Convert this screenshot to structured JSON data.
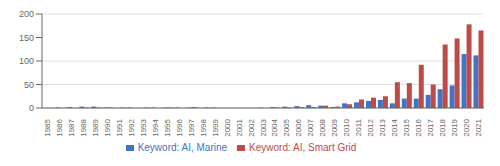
{
  "chart_data": {
    "type": "bar",
    "categories": [
      "1985",
      "1986",
      "1987",
      "1988",
      "1989",
      "1990",
      "1991",
      "1992",
      "1993",
      "1994",
      "1995",
      "1996",
      "1997",
      "1998",
      "1999",
      "2000",
      "2001",
      "2002",
      "2003",
      "2004",
      "2005",
      "2006",
      "2007",
      "2008",
      "2009",
      "2010",
      "2011",
      "2012",
      "2013",
      "2014",
      "2015",
      "2016",
      "2017",
      "2018",
      "2019",
      "2020",
      "2021"
    ],
    "series": [
      {
        "name": "Keyword: AI, Marine",
        "color": "#4472C4",
        "values": [
          0,
          1,
          2,
          3,
          3,
          1,
          0,
          1,
          0,
          1,
          1,
          1,
          1,
          0,
          1,
          0,
          0,
          0,
          1,
          2,
          3,
          4,
          6,
          5,
          2,
          10,
          12,
          15,
          17,
          10,
          20,
          20,
          28,
          40,
          48,
          115,
          112
        ]
      },
      {
        "name": "Keyword: AI, Smart Grid",
        "color": "#BE4B48",
        "values": [
          0,
          0,
          0,
          1,
          1,
          1,
          1,
          0,
          1,
          0,
          1,
          0,
          2,
          1,
          0,
          0,
          0,
          0,
          0,
          1,
          1,
          2,
          2,
          5,
          3,
          8,
          18,
          22,
          25,
          55,
          53,
          92,
          50,
          135,
          148,
          178,
          165
        ]
      }
    ],
    "ylim": [
      0,
      200
    ],
    "yticks": [
      0,
      50,
      100,
      150,
      200
    ],
    "grid": true,
    "legend": "bottom"
  }
}
